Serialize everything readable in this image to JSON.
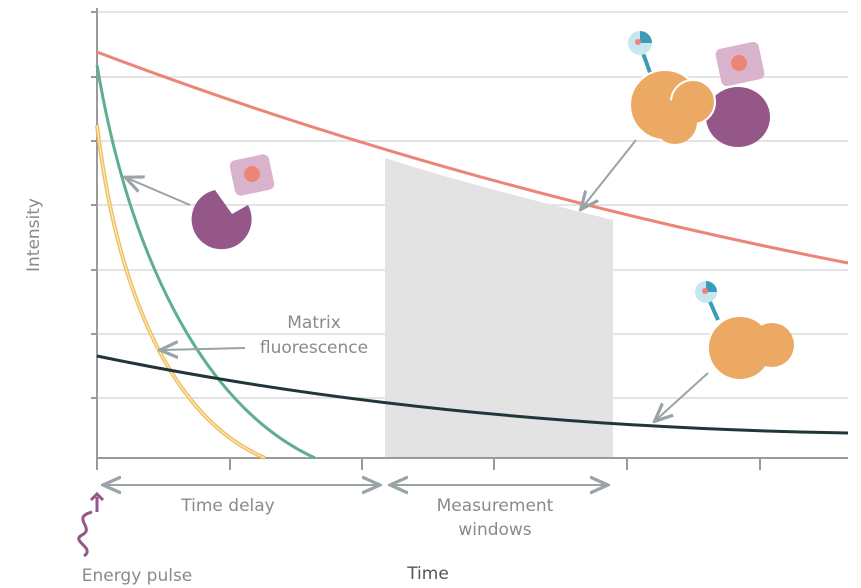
{
  "axes": {
    "y_label": "Intensity",
    "x_label": "Time"
  },
  "annotations": {
    "energy_pulse": "Energy pulse",
    "time_delay": "Time delay",
    "measurement_windows": [
      "Measurement",
      "windows"
    ],
    "matrix_fluorescence": [
      "Matrix",
      "fluorescence"
    ]
  }
}
